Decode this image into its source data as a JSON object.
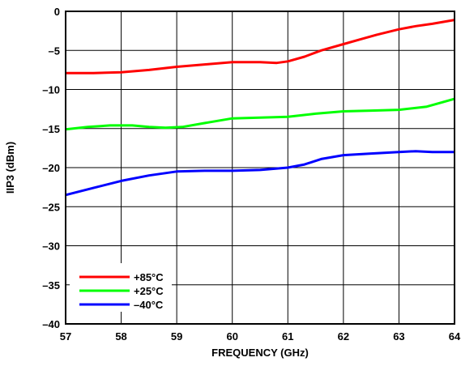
{
  "chart_data": {
    "type": "line",
    "xlabel": "FREQUENCY (GHz)",
    "ylabel": "IIP3 (dBm)",
    "xlim": [
      57,
      64
    ],
    "ylim": [
      -40,
      0
    ],
    "x_ticks": [
      "57",
      "58",
      "59",
      "60",
      "61",
      "62",
      "63",
      "64"
    ],
    "y_ticks": [
      "0",
      "–5",
      "–10",
      "–15",
      "–20",
      "–25",
      "–30",
      "–35",
      "–40"
    ],
    "grid": true,
    "legend_position": "bottom-left",
    "series": [
      {
        "name": "+85°C",
        "color": "#ff0000",
        "x": [
          57,
          57.5,
          58,
          58.5,
          59,
          59.5,
          60,
          60.5,
          60.8,
          61,
          61.3,
          61.6,
          62,
          62.3,
          62.6,
          63,
          63.3,
          63.6,
          64
        ],
        "y": [
          -7.9,
          -7.9,
          -7.8,
          -7.5,
          -7.1,
          -6.8,
          -6.5,
          -6.5,
          -6.6,
          -6.4,
          -5.8,
          -5.0,
          -4.2,
          -3.6,
          -3.0,
          -2.3,
          -1.9,
          -1.6,
          -1.1
        ]
      },
      {
        "name": "+25°C",
        "color": "#00ff00",
        "x": [
          57,
          57.4,
          57.8,
          58.2,
          58.5,
          58.8,
          59.1,
          59.5,
          60,
          60.5,
          61,
          61.5,
          62,
          62.5,
          63,
          63.5,
          64
        ],
        "y": [
          -15.1,
          -14.8,
          -14.6,
          -14.6,
          -14.8,
          -14.9,
          -14.8,
          -14.3,
          -13.7,
          -13.6,
          -13.5,
          -13.1,
          -12.8,
          -12.7,
          -12.6,
          -12.2,
          -11.2
        ]
      },
      {
        "name": "–40°C",
        "color": "#0000ff",
        "x": [
          57,
          57.5,
          58,
          58.5,
          59,
          59.5,
          60,
          60.5,
          61,
          61.3,
          61.6,
          62,
          62.5,
          63,
          63.3,
          63.6,
          64
        ],
        "y": [
          -23.5,
          -22.6,
          -21.7,
          -21.0,
          -20.5,
          -20.4,
          -20.4,
          -20.3,
          -20.0,
          -19.6,
          -18.9,
          -18.4,
          -18.2,
          -18.0,
          -17.9,
          -18.0,
          -18.0
        ]
      }
    ]
  }
}
